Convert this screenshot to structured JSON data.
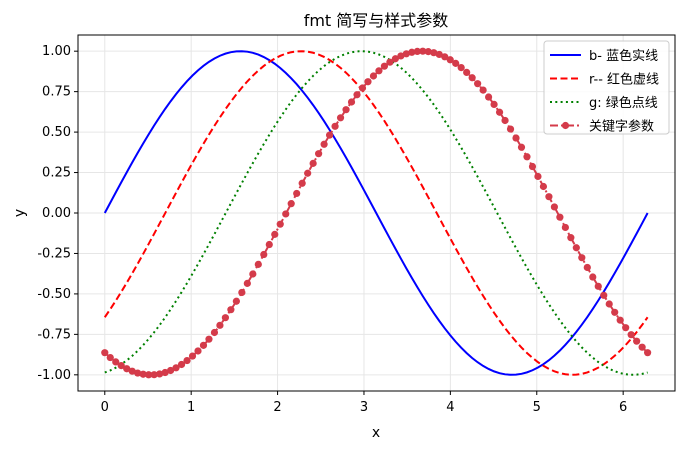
{
  "chart_data": {
    "type": "line",
    "title": "fmt 简写与样式参数",
    "xlabel": "x",
    "ylabel": "y",
    "xlim": [
      -0.31,
      6.6
    ],
    "ylim": [
      -1.1,
      1.1
    ],
    "xticks": [
      0,
      1,
      2,
      3,
      4,
      5,
      6
    ],
    "xtick_labels": [
      "0",
      "1",
      "2",
      "3",
      "4",
      "5",
      "6"
    ],
    "yticks": [
      1.0,
      0.75,
      0.5,
      0.25,
      0.0,
      -0.25,
      -0.5,
      -0.75,
      -1.0
    ],
    "ytick_labels": [
      "1.00",
      "0.75",
      "0.50",
      "0.25",
      "0.00",
      "-0.25",
      "-0.50",
      "-0.75",
      "-1.00"
    ],
    "grid": true,
    "legend_position": "top-right",
    "x_range": [
      0,
      6.283
    ],
    "point_count": 100,
    "series": [
      {
        "name": "b- 蓝色实线",
        "function": "sin(x)",
        "color": "#0000ff",
        "line_style": "solid",
        "marker": "none",
        "sample_values": {
          "x": [
            0,
            1.571,
            3.142,
            4.712,
            6.283
          ],
          "y": [
            0.0,
            1.0,
            0.0,
            -1.0,
            0.0
          ]
        }
      },
      {
        "name": "r-- 红色虚线",
        "function": "sin(x - 0.7)",
        "color": "#ff0000",
        "line_style": "dashed",
        "marker": "none",
        "sample_values": {
          "x": [
            0,
            2.271,
            5.412,
            6.283
          ],
          "y": [
            -0.64,
            1.0,
            -1.0,
            -0.64
          ]
        }
      },
      {
        "name": "g: 绿色点线",
        "function": "sin(x - 1.4)",
        "color": "#008000",
        "line_style": "dotted",
        "marker": "none",
        "sample_values": {
          "x": [
            0,
            2.971,
            6.112,
            6.283
          ],
          "y": [
            -0.985,
            1.0,
            -1.0,
            -0.985
          ]
        }
      },
      {
        "name": "关键字参数",
        "function": "sin(x - 2.1)",
        "color": "#d43b4a",
        "line_style": "dashdot",
        "marker": "circle",
        "sample_values": {
          "x": [
            0,
            0.529,
            3.671,
            6.283
          ],
          "y": [
            -0.863,
            -1.0,
            1.0,
            -0.863
          ]
        }
      }
    ]
  }
}
